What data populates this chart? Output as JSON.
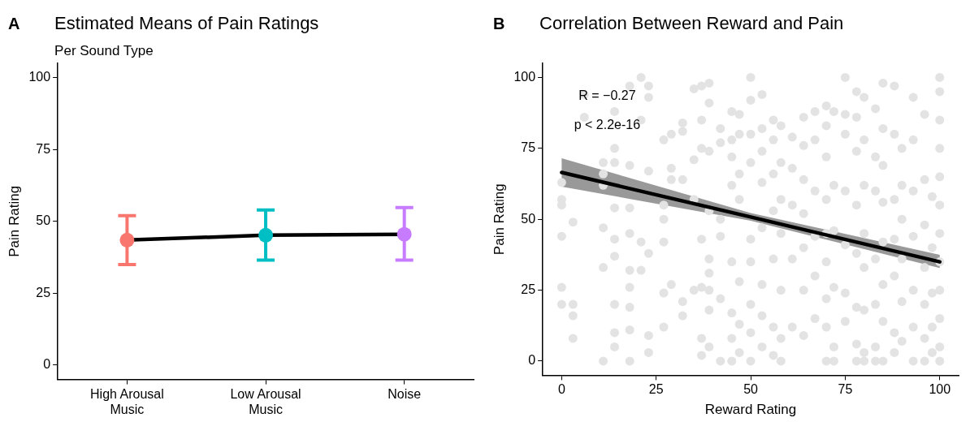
{
  "chart_data": [
    {
      "type": "line",
      "title": "Estimated Means of Pain Ratings",
      "subtitle": "Per Sound Type",
      "ylabel": "Pain Rating",
      "annotations": [
        "A"
      ],
      "categories": [
        "High Arousal Music",
        "Low Arousal Music",
        "Noise"
      ],
      "series": [
        {
          "color": "#000000",
          "colors": [
            "#f8766d",
            "#00bfc4",
            "#c77cff"
          ],
          "values": [
            43.5,
            45.2,
            45.5
          ],
          "errors": [
            [
              35,
              52
            ],
            [
              36.5,
              54
            ],
            [
              36.5,
              54.8
            ]
          ]
        }
      ],
      "ylim": [
        -5,
        105
      ],
      "yticks": [
        0,
        25,
        50,
        75,
        100
      ],
      "grid": false,
      "legend": false,
      "marker": "circle",
      "line_style": "solid"
    },
    {
      "type": "scatter",
      "title": "Correlation Between Reward and Pain",
      "xlabel": "Reward Rating",
      "ylabel": "Pain Rating",
      "annotations": [
        "B",
        "R = −0.27",
        "p < 2.2e-16"
      ],
      "series": [
        {
          "color": "#e3e3e3",
          "marker": "circle",
          "x": [
            0,
            0,
            0,
            0,
            0,
            0,
            3,
            3,
            3,
            3,
            6,
            6,
            11,
            11,
            11,
            11,
            11,
            11,
            14,
            14,
            14,
            14,
            14,
            14,
            14,
            14,
            14,
            18,
            18,
            18,
            18,
            18,
            18,
            18,
            18,
            18,
            21,
            21,
            21,
            21,
            23,
            23,
            23,
            23,
            23,
            23,
            27,
            27,
            27,
            27,
            27,
            27,
            29,
            29,
            29,
            29,
            32,
            32,
            32,
            32,
            32,
            35,
            35,
            35,
            35,
            37,
            37,
            37,
            37,
            37,
            37,
            37,
            39,
            39,
            39,
            39,
            39,
            39,
            39,
            39,
            39,
            42,
            42,
            42,
            42,
            42,
            42,
            45,
            45,
            45,
            45,
            45,
            45,
            45,
            45,
            47,
            47,
            47,
            47,
            47,
            47,
            47,
            50,
            50,
            50,
            50,
            50,
            50,
            50,
            50,
            50,
            53,
            53,
            53,
            53,
            53,
            53,
            53,
            53,
            56,
            56,
            56,
            56,
            56,
            56,
            56,
            58,
            58,
            58,
            58,
            58,
            58,
            58,
            61,
            61,
            61,
            61,
            61,
            64,
            64,
            64,
            64,
            64,
            64,
            64,
            67,
            67,
            67,
            67,
            67,
            67,
            70,
            70,
            70,
            70,
            70,
            70,
            70,
            70,
            70,
            72,
            72,
            72,
            72,
            72,
            72,
            75,
            75,
            75,
            75,
            75,
            75,
            75,
            78,
            78,
            78,
            78,
            78,
            78,
            78,
            78,
            80,
            80,
            80,
            80,
            80,
            80,
            80,
            80,
            83,
            83,
            83,
            83,
            83,
            83,
            83,
            85,
            85,
            85,
            85,
            85,
            85,
            85,
            85,
            88,
            88,
            88,
            88,
            88,
            88,
            88,
            90,
            90,
            90,
            90,
            90,
            90,
            93,
            93,
            93,
            93,
            93,
            93,
            93,
            96,
            96,
            96,
            96,
            96,
            96,
            96,
            98,
            98,
            98,
            98,
            98,
            100,
            100,
            100,
            100,
            100,
            100,
            100,
            100,
            100,
            100,
            100,
            100
          ],
          "values": [
            63,
            57,
            55,
            44,
            26,
            20,
            49,
            20,
            16,
            8,
            94,
            86,
            70,
            66,
            62,
            47,
            33,
            0,
            88,
            75,
            70,
            54,
            43,
            37,
            20,
            10,
            5,
            97,
            69,
            54,
            45,
            32,
            26,
            19,
            11,
            0,
            100,
            85,
            42,
            32,
            97,
            93,
            67,
            38,
            9,
            3,
            78,
            55,
            50,
            42,
            24,
            12,
            80,
            68,
            64,
            27,
            84,
            81,
            64,
            21,
            16,
            96,
            71,
            57,
            25,
            97,
            85,
            75,
            43,
            26,
            8,
            2,
            98,
            91,
            74,
            53,
            36,
            31,
            25,
            18,
            5,
            82,
            77,
            50,
            44,
            22,
            0,
            88,
            78,
            72,
            62,
            35,
            17,
            8,
            0,
            87,
            80,
            66,
            57,
            28,
            13,
            3,
            100,
            92,
            80,
            70,
            43,
            35,
            20,
            10,
            0,
            94,
            82,
            74,
            63,
            47,
            27,
            16,
            5,
            85,
            78,
            66,
            53,
            36,
            12,
            2,
            83,
            70,
            57,
            45,
            25,
            8,
            0,
            79,
            68,
            55,
            36,
            12,
            86,
            76,
            64,
            52,
            40,
            25,
            9,
            88,
            78,
            60,
            44,
            30,
            15,
            90,
            83,
            72,
            57,
            45,
            35,
            22,
            12,
            0,
            88,
            62,
            46,
            26,
            5,
            0,
            100,
            87,
            80,
            60,
            41,
            24,
            14,
            95,
            86,
            74,
            55,
            38,
            19,
            6,
            0,
            93,
            78,
            62,
            45,
            33,
            18,
            3,
            0,
            89,
            72,
            60,
            36,
            20,
            5,
            0,
            98,
            82,
            69,
            56,
            42,
            27,
            14,
            0,
            97,
            80,
            57,
            43,
            30,
            10,
            3,
            75,
            62,
            50,
            36,
            21,
            7,
            93,
            78,
            60,
            44,
            25,
            12,
            0,
            87,
            64,
            48,
            33,
            20,
            8,
            0,
            58,
            40,
            24,
            12,
            3,
            100,
            95,
            85,
            75,
            65,
            55,
            45,
            35,
            25,
            15,
            5,
            0
          ]
        },
        {
          "type": "line",
          "marker": "none",
          "color": "#000000",
          "x": [
            0,
            50,
            100
          ],
          "values": [
            66.5,
            50.8,
            35
          ],
          "lower": [
            61.5,
            49.5,
            32.8
          ],
          "upper": [
            71.5,
            52.2,
            37.5
          ]
        }
      ],
      "xlim": [
        -5,
        105
      ],
      "xticks": [
        0,
        25,
        50,
        75,
        100
      ],
      "ylim": [
        -5,
        105
      ],
      "yticks": [
        0,
        25,
        50,
        75,
        100
      ],
      "grid": false,
      "legend": false
    }
  ]
}
